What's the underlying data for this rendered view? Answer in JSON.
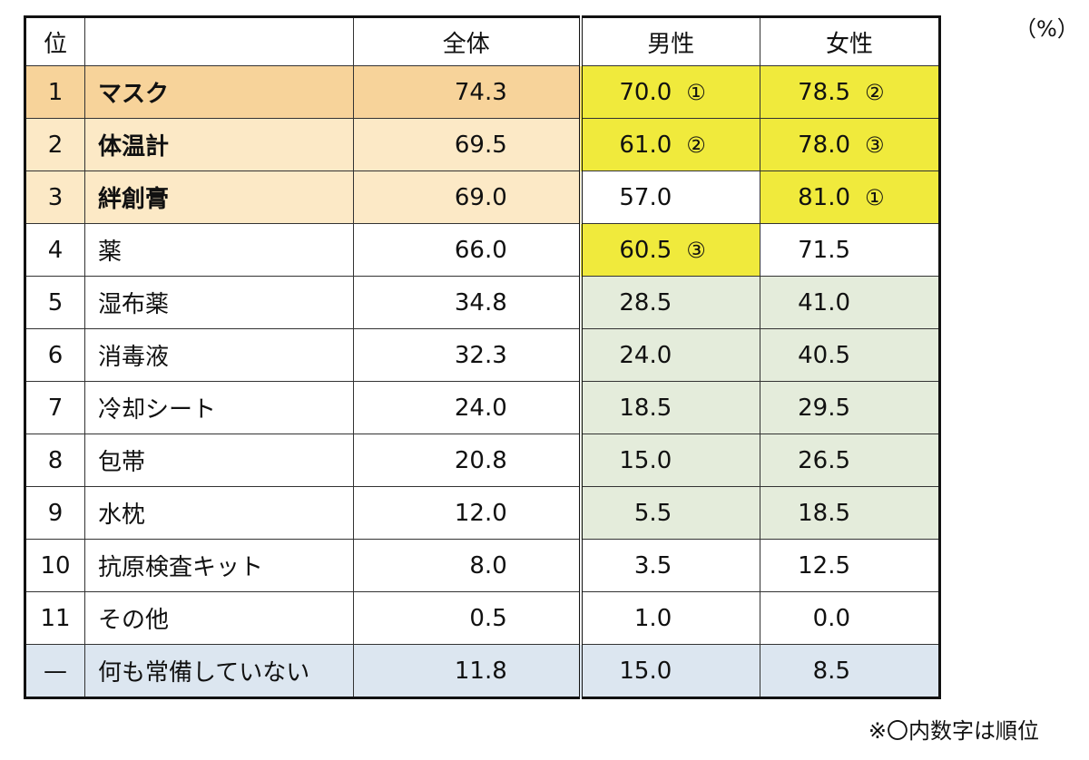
{
  "unit_label": "（%）",
  "note": "※〇内数字は順位",
  "colors": {
    "top_rank_orange": "#f7d39a",
    "rank_light_orange": "#fce9c6",
    "highlight_yellow": "#f0ea3c",
    "light_green": "#e4ecdb",
    "light_blue": "#dce6f0",
    "white": "#ffffff"
  },
  "chart_data": {
    "type": "table",
    "columns": [
      "位",
      "",
      "全体",
      "男性",
      "女性"
    ],
    "rows": [
      {
        "rank": "1",
        "item": "マスク",
        "all": "74.3",
        "male": "70.0",
        "male_rank": "①",
        "female": "78.5",
        "female_rank": "②",
        "bold": true,
        "bg": {
          "rank": "#f7d39a",
          "item": "#f7d39a",
          "all": "#f7d39a",
          "male": "#f0ea3c",
          "female": "#f0ea3c"
        }
      },
      {
        "rank": "2",
        "item": "体温計",
        "all": "69.5",
        "male": "61.0",
        "male_rank": "②",
        "female": "78.0",
        "female_rank": "③",
        "bold": true,
        "bg": {
          "rank": "#fce9c6",
          "item": "#fce9c6",
          "all": "#fce9c6",
          "male": "#f0ea3c",
          "female": "#f0ea3c"
        }
      },
      {
        "rank": "3",
        "item": "絆創膏",
        "all": "69.0",
        "male": "57.0",
        "male_rank": "",
        "female": "81.0",
        "female_rank": "①",
        "bold": true,
        "bg": {
          "rank": "#fce9c6",
          "item": "#fce9c6",
          "all": "#fce9c6",
          "male": "#ffffff",
          "female": "#f0ea3c"
        }
      },
      {
        "rank": "4",
        "item": "薬",
        "all": "66.0",
        "male": "60.5",
        "male_rank": "③",
        "female": "71.5",
        "female_rank": "",
        "bold": false,
        "bg": {
          "rank": "#ffffff",
          "item": "#ffffff",
          "all": "#ffffff",
          "male": "#f0ea3c",
          "female": "#ffffff"
        }
      },
      {
        "rank": "5",
        "item": "湿布薬",
        "all": "34.8",
        "male": "28.5",
        "male_rank": "",
        "female": "41.0",
        "female_rank": "",
        "bold": false,
        "bg": {
          "rank": "#ffffff",
          "item": "#ffffff",
          "all": "#ffffff",
          "male": "#e4ecdb",
          "female": "#e4ecdb"
        }
      },
      {
        "rank": "6",
        "item": "消毒液",
        "all": "32.3",
        "male": "24.0",
        "male_rank": "",
        "female": "40.5",
        "female_rank": "",
        "bold": false,
        "bg": {
          "rank": "#ffffff",
          "item": "#ffffff",
          "all": "#ffffff",
          "male": "#e4ecdb",
          "female": "#e4ecdb"
        }
      },
      {
        "rank": "7",
        "item": "冷却シート",
        "all": "24.0",
        "male": "18.5",
        "male_rank": "",
        "female": "29.5",
        "female_rank": "",
        "bold": false,
        "bg": {
          "rank": "#ffffff",
          "item": "#ffffff",
          "all": "#ffffff",
          "male": "#e4ecdb",
          "female": "#e4ecdb"
        }
      },
      {
        "rank": "8",
        "item": "包帯",
        "all": "20.8",
        "male": "15.0",
        "male_rank": "",
        "female": "26.5",
        "female_rank": "",
        "bold": false,
        "bg": {
          "rank": "#ffffff",
          "item": "#ffffff",
          "all": "#ffffff",
          "male": "#e4ecdb",
          "female": "#e4ecdb"
        }
      },
      {
        "rank": "9",
        "item": "水枕",
        "all": "12.0",
        "male": "5.5",
        "male_rank": "",
        "female": "18.5",
        "female_rank": "",
        "bold": false,
        "bg": {
          "rank": "#ffffff",
          "item": "#ffffff",
          "all": "#ffffff",
          "male": "#e4ecdb",
          "female": "#e4ecdb"
        }
      },
      {
        "rank": "10",
        "item": "抗原検査キット",
        "all": "8.0",
        "male": "3.5",
        "male_rank": "",
        "female": "12.5",
        "female_rank": "",
        "bold": false,
        "bg": {
          "rank": "#ffffff",
          "item": "#ffffff",
          "all": "#ffffff",
          "male": "#ffffff",
          "female": "#ffffff"
        }
      },
      {
        "rank": "11",
        "item": "その他",
        "all": "0.5",
        "male": "1.0",
        "male_rank": "",
        "female": "0.0",
        "female_rank": "",
        "bold": false,
        "bg": {
          "rank": "#ffffff",
          "item": "#ffffff",
          "all": "#ffffff",
          "male": "#ffffff",
          "female": "#ffffff"
        }
      },
      {
        "rank": "—",
        "item": "何も常備していない",
        "all": "11.8",
        "male": "15.0",
        "male_rank": "",
        "female": "8.5",
        "female_rank": "",
        "bold": false,
        "bg": {
          "rank": "#dce6f0",
          "item": "#dce6f0",
          "all": "#dce6f0",
          "male": "#dce6f0",
          "female": "#dce6f0"
        }
      }
    ]
  }
}
